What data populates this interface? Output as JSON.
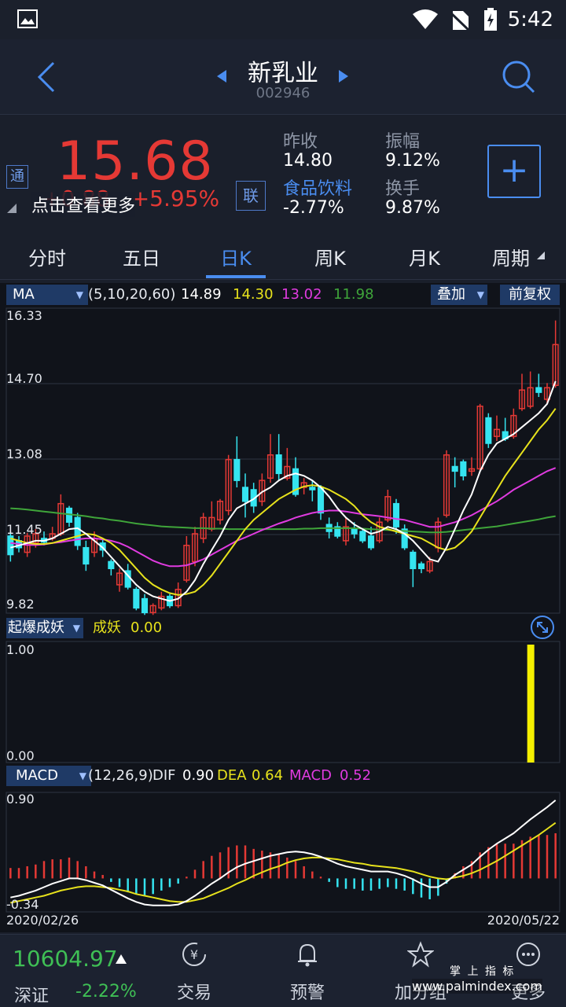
{
  "status": {
    "time": "5:42"
  },
  "header": {
    "name": "新乳业",
    "code": "002946"
  },
  "quote": {
    "price": "15.68",
    "change": "+0.88",
    "change_pct": "+5.95%",
    "tip": "点击查看更多",
    "tong_badge": "通",
    "lian_badge": "联",
    "prev_close_label": "昨收",
    "prev_close": "14.80",
    "amplitude_label": "振幅",
    "amplitude": "9.12%",
    "sector_label": "食品饮料",
    "sector_change": "-2.77%",
    "turnover_label": "换手",
    "turnover": "9.87%",
    "add_symbol": "+"
  },
  "tabs": [
    {
      "label": "分时",
      "active": false
    },
    {
      "label": "五日",
      "active": false
    },
    {
      "label": "日K",
      "active": true
    },
    {
      "label": "周K",
      "active": false
    },
    {
      "label": "月K",
      "active": false
    },
    {
      "label": "周期",
      "active": false
    }
  ],
  "ma_bar": {
    "name": "MA",
    "params": "(5,10,20,60)",
    "ma5": "14.89",
    "ma10": "14.30",
    "ma20": "13.02",
    "ma60": "11.98",
    "overlay": "叠加",
    "fq": "前复权"
  },
  "colors": {
    "ma5": "#ffffff",
    "ma10": "#e7e21c",
    "ma20": "#e03be0",
    "ma60": "#3fa53a",
    "up": "#e53935",
    "down": "#35e4f0",
    "accent": "#4a8df0"
  },
  "price_axis": [
    "16.33",
    "14.70",
    "13.08",
    "11.45",
    "9.82"
  ],
  "yao_bar": {
    "name": "起爆成妖",
    "label": "成妖",
    "value": "0.00",
    "axis_top": "1.00",
    "axis_bottom": "0.00"
  },
  "macd_bar": {
    "name": "MACD",
    "params": "(12,26,9)",
    "dif_label": "DIF",
    "dif": "0.90",
    "dea_label": "DEA",
    "dea": "0.64",
    "macd_label": "MACD",
    "macd": "0.52",
    "axis_top": "0.90",
    "axis_bottom": "-0.34"
  },
  "dates": {
    "start": "2020/02/26",
    "end": "2020/05/22"
  },
  "bottom": {
    "index_value": "10604.97",
    "index_name": "深证",
    "index_change": "-2.22%",
    "nav": [
      {
        "label": "交易",
        "icon": "yuan-exchange-icon"
      },
      {
        "label": "预警",
        "icon": "bell-icon"
      },
      {
        "label": "加分组",
        "icon": "star-icon"
      },
      {
        "label": "更多",
        "icon": "more-icon"
      }
    ],
    "watermark_cn": "掌 上 指 标",
    "watermark_url": "www.palmindex.com"
  },
  "chart_data": {
    "type": "candlestick",
    "price_range": [
      9.82,
      16.33
    ],
    "candles": [
      {
        "o": 11.55,
        "c": 11.15,
        "h": 11.65,
        "l": 11.0
      },
      {
        "o": 11.45,
        "c": 11.3,
        "h": 11.55,
        "l": 11.2
      },
      {
        "o": 11.2,
        "c": 11.55,
        "h": 11.62,
        "l": 11.1
      },
      {
        "o": 11.4,
        "c": 11.6,
        "h": 11.7,
        "l": 11.3
      },
      {
        "o": 11.5,
        "c": 11.42,
        "h": 11.65,
        "l": 11.35
      },
      {
        "o": 11.5,
        "c": 11.6,
        "h": 11.75,
        "l": 11.45
      },
      {
        "o": 11.6,
        "c": 12.25,
        "h": 12.45,
        "l": 11.55
      },
      {
        "o": 12.15,
        "c": 11.85,
        "h": 12.2,
        "l": 11.75
      },
      {
        "o": 11.95,
        "c": 11.35,
        "h": 12.05,
        "l": 11.25
      },
      {
        "o": 11.3,
        "c": 10.95,
        "h": 11.45,
        "l": 10.8
      },
      {
        "o": 11.2,
        "c": 11.5,
        "h": 11.65,
        "l": 11.1
      },
      {
        "o": 11.4,
        "c": 11.25,
        "h": 11.5,
        "l": 11.1
      },
      {
        "o": 11.0,
        "c": 10.85,
        "h": 11.05,
        "l": 10.7
      },
      {
        "o": 10.5,
        "c": 10.75,
        "h": 10.85,
        "l": 10.35
      },
      {
        "o": 10.8,
        "c": 10.45,
        "h": 10.95,
        "l": 10.4
      },
      {
        "o": 10.4,
        "c": 10.0,
        "h": 10.45,
        "l": 9.95
      },
      {
        "o": 10.2,
        "c": 9.9,
        "h": 10.3,
        "l": 9.85
      },
      {
        "o": 9.9,
        "c": 10.05,
        "h": 10.1,
        "l": 9.85
      },
      {
        "o": 10.0,
        "c": 10.25,
        "h": 10.35,
        "l": 9.95
      },
      {
        "o": 10.25,
        "c": 10.05,
        "h": 10.3,
        "l": 10.0
      },
      {
        "o": 10.05,
        "c": 10.4,
        "h": 10.55,
        "l": 10.0
      },
      {
        "o": 10.6,
        "c": 11.35,
        "h": 11.55,
        "l": 10.55
      },
      {
        "o": 11.0,
        "c": 11.6,
        "h": 11.75,
        "l": 10.9
      },
      {
        "o": 11.5,
        "c": 11.95,
        "h": 12.05,
        "l": 11.4
      },
      {
        "o": 11.7,
        "c": 11.95,
        "h": 12.3,
        "l": 11.65
      },
      {
        "o": 11.9,
        "c": 12.3,
        "h": 12.35,
        "l": 11.8
      },
      {
        "o": 12.1,
        "c": 13.2,
        "h": 13.3,
        "l": 12.0
      },
      {
        "o": 13.2,
        "c": 12.75,
        "h": 13.7,
        "l": 12.6
      },
      {
        "o": 12.6,
        "c": 12.3,
        "h": 12.9,
        "l": 11.95
      },
      {
        "o": 12.55,
        "c": 12.2,
        "h": 12.7,
        "l": 12.05
      },
      {
        "o": 12.3,
        "c": 12.75,
        "h": 12.9,
        "l": 12.2
      },
      {
        "o": 12.8,
        "c": 13.3,
        "h": 13.75,
        "l": 12.7
      },
      {
        "o": 13.3,
        "c": 12.9,
        "h": 13.75,
        "l": 12.75
      },
      {
        "o": 12.8,
        "c": 13.05,
        "h": 13.45,
        "l": 12.75
      },
      {
        "o": 13.0,
        "c": 12.45,
        "h": 13.25,
        "l": 12.4
      },
      {
        "o": 12.6,
        "c": 12.7,
        "h": 12.8,
        "l": 12.45
      },
      {
        "o": 12.6,
        "c": 12.55,
        "h": 12.75,
        "l": 12.3
      },
      {
        "o": 12.6,
        "c": 12.05,
        "h": 12.65,
        "l": 11.9
      },
      {
        "o": 11.8,
        "c": 11.65,
        "h": 11.95,
        "l": 11.5
      },
      {
        "o": 11.75,
        "c": 11.55,
        "h": 11.85,
        "l": 11.5
      },
      {
        "o": 11.45,
        "c": 11.75,
        "h": 11.95,
        "l": 11.35
      },
      {
        "o": 11.7,
        "c": 11.6,
        "h": 11.85,
        "l": 11.5
      },
      {
        "o": 11.65,
        "c": 11.45,
        "h": 11.7,
        "l": 11.4
      },
      {
        "o": 11.55,
        "c": 11.3,
        "h": 11.75,
        "l": 11.25
      },
      {
        "o": 11.45,
        "c": 11.85,
        "h": 11.95,
        "l": 11.4
      },
      {
        "o": 11.9,
        "c": 12.4,
        "h": 12.55,
        "l": 11.85
      },
      {
        "o": 12.25,
        "c": 11.75,
        "h": 12.35,
        "l": 11.6
      },
      {
        "o": 11.7,
        "c": 11.3,
        "h": 11.8,
        "l": 11.25
      },
      {
        "o": 11.2,
        "c": 10.85,
        "h": 11.25,
        "l": 10.45
      },
      {
        "o": 10.95,
        "c": 10.85,
        "h": 11.0,
        "l": 10.75
      },
      {
        "o": 10.8,
        "c": 11.0,
        "h": 11.1,
        "l": 10.75
      },
      {
        "o": 11.3,
        "c": 11.85,
        "h": 11.95,
        "l": 11.2
      },
      {
        "o": 12.0,
        "c": 13.3,
        "h": 13.4,
        "l": 11.95
      },
      {
        "o": 13.05,
        "c": 12.95,
        "h": 13.25,
        "l": 12.6
      },
      {
        "o": 13.15,
        "c": 12.85,
        "h": 13.2,
        "l": 12.75
      },
      {
        "o": 12.95,
        "c": 13.0,
        "h": 13.25,
        "l": 12.85
      },
      {
        "o": 13.0,
        "c": 14.35,
        "h": 14.4,
        "l": 12.95
      },
      {
        "o": 14.1,
        "c": 13.55,
        "h": 14.2,
        "l": 13.45
      },
      {
        "o": 13.7,
        "c": 13.85,
        "h": 14.15,
        "l": 13.6
      },
      {
        "o": 13.8,
        "c": 13.65,
        "h": 14.1,
        "l": 13.6
      },
      {
        "o": 13.7,
        "c": 14.15,
        "h": 14.3,
        "l": 13.65
      },
      {
        "o": 14.3,
        "c": 14.7,
        "h": 15.05,
        "l": 14.25
      },
      {
        "o": 14.35,
        "c": 14.75,
        "h": 15.1,
        "l": 14.3
      },
      {
        "o": 14.75,
        "c": 14.65,
        "h": 15.05,
        "l": 14.55
      },
      {
        "o": 14.5,
        "c": 14.75,
        "h": 14.85,
        "l": 14.4
      },
      {
        "o": 14.8,
        "c": 15.68,
        "h": 16.2,
        "l": 14.75
      }
    ],
    "ma5": [
      11.3,
      11.35,
      11.4,
      11.45,
      11.45,
      11.5,
      11.6,
      11.7,
      11.72,
      11.6,
      11.45,
      11.3,
      11.1,
      10.9,
      10.7,
      10.5,
      10.35,
      10.25,
      10.2,
      10.15,
      10.2,
      10.35,
      10.6,
      10.95,
      11.25,
      11.55,
      11.9,
      12.15,
      12.25,
      12.35,
      12.5,
      12.6,
      12.75,
      12.85,
      12.9,
      12.85,
      12.75,
      12.6,
      12.4,
      12.15,
      11.95,
      11.8,
      11.7,
      11.6,
      11.65,
      11.75,
      11.7,
      11.6,
      11.45,
      11.25,
      11.05,
      11.0,
      11.3,
      11.7,
      12.1,
      12.45,
      12.95,
      13.3,
      13.55,
      13.65,
      13.75,
      13.9,
      14.05,
      14.2,
      14.4,
      14.89
    ],
    "ma10": [
      11.5,
      11.45,
      11.4,
      11.38,
      11.38,
      11.4,
      11.45,
      11.5,
      11.55,
      11.6,
      11.58,
      11.5,
      11.4,
      11.25,
      11.05,
      10.85,
      10.65,
      10.5,
      10.4,
      10.32,
      10.28,
      10.3,
      10.35,
      10.5,
      10.7,
      10.95,
      11.2,
      11.45,
      11.7,
      11.9,
      12.05,
      12.2,
      12.35,
      12.45,
      12.55,
      12.62,
      12.65,
      12.62,
      12.55,
      12.45,
      12.35,
      12.2,
      12.0,
      11.85,
      11.75,
      11.7,
      11.65,
      11.6,
      11.55,
      11.5,
      11.4,
      11.3,
      11.25,
      11.3,
      11.45,
      11.65,
      11.95,
      12.25,
      12.55,
      12.85,
      13.1,
      13.35,
      13.6,
      13.85,
      14.05,
      14.3
    ],
    "ma20": [
      11.4,
      11.38,
      11.36,
      11.36,
      11.37,
      11.4,
      11.42,
      11.45,
      11.48,
      11.5,
      11.5,
      11.48,
      11.45,
      11.4,
      11.32,
      11.22,
      11.12,
      11.02,
      10.95,
      10.9,
      10.9,
      10.92,
      10.98,
      11.05,
      11.15,
      11.25,
      11.35,
      11.45,
      11.52,
      11.6,
      11.68,
      11.75,
      11.82,
      11.88,
      11.95,
      12.0,
      12.05,
      12.08,
      12.1,
      12.1,
      12.08,
      12.05,
      12.02,
      12.0,
      11.98,
      11.95,
      11.92,
      11.9,
      11.85,
      11.8,
      11.75,
      11.75,
      11.8,
      11.85,
      11.92,
      12.0,
      12.1,
      12.2,
      12.3,
      12.42,
      12.55,
      12.65,
      12.75,
      12.85,
      12.95,
      13.02
    ],
    "ma60": [
      12.15,
      12.14,
      12.12,
      12.1,
      12.08,
      12.06,
      12.04,
      12.02,
      12.0,
      11.98,
      11.95,
      11.93,
      11.9,
      11.88,
      11.85,
      11.82,
      11.8,
      11.78,
      11.76,
      11.75,
      11.74,
      11.73,
      11.72,
      11.72,
      11.71,
      11.71,
      11.7,
      11.7,
      11.7,
      11.7,
      11.7,
      11.7,
      11.7,
      11.7,
      11.7,
      11.71,
      11.71,
      11.72,
      11.72,
      11.72,
      11.72,
      11.72,
      11.71,
      11.7,
      11.69,
      11.68,
      11.67,
      11.66,
      11.65,
      11.64,
      11.63,
      11.63,
      11.64,
      11.66,
      11.68,
      11.7,
      11.72,
      11.74,
      11.76,
      11.79,
      11.82,
      11.85,
      11.88,
      11.91,
      11.95,
      11.98
    ],
    "yao_signal_index": 62,
    "macd_range": [
      -0.34,
      0.9
    ],
    "dif": [
      -0.22,
      -0.2,
      -0.17,
      -0.14,
      -0.1,
      -0.06,
      -0.03,
      0.0,
      0.0,
      -0.02,
      -0.05,
      -0.08,
      -0.13,
      -0.18,
      -0.23,
      -0.27,
      -0.3,
      -0.31,
      -0.31,
      -0.31,
      -0.3,
      -0.26,
      -0.2,
      -0.13,
      -0.06,
      0.0,
      0.07,
      0.13,
      0.17,
      0.2,
      0.23,
      0.26,
      0.28,
      0.3,
      0.31,
      0.3,
      0.28,
      0.25,
      0.21,
      0.17,
      0.14,
      0.12,
      0.1,
      0.08,
      0.08,
      0.08,
      0.06,
      0.03,
      -0.01,
      -0.06,
      -0.1,
      -0.1,
      -0.04,
      0.04,
      0.1,
      0.16,
      0.25,
      0.33,
      0.4,
      0.46,
      0.52,
      0.6,
      0.68,
      0.75,
      0.82,
      0.9
    ],
    "dea": [
      -0.28,
      -0.26,
      -0.24,
      -0.22,
      -0.2,
      -0.17,
      -0.14,
      -0.12,
      -0.1,
      -0.09,
      -0.09,
      -0.1,
      -0.11,
      -0.13,
      -0.15,
      -0.18,
      -0.2,
      -0.22,
      -0.24,
      -0.26,
      -0.27,
      -0.27,
      -0.25,
      -0.23,
      -0.19,
      -0.15,
      -0.11,
      -0.06,
      -0.02,
      0.03,
      0.07,
      0.11,
      0.14,
      0.18,
      0.21,
      0.23,
      0.24,
      0.24,
      0.23,
      0.22,
      0.2,
      0.18,
      0.17,
      0.15,
      0.14,
      0.13,
      0.12,
      0.1,
      0.08,
      0.05,
      0.02,
      0.0,
      -0.01,
      0.01,
      0.03,
      0.06,
      0.1,
      0.15,
      0.2,
      0.26,
      0.32,
      0.38,
      0.44,
      0.5,
      0.57,
      0.64
    ],
    "macd": [
      0.12,
      0.12,
      0.14,
      0.16,
      0.2,
      0.22,
      0.22,
      0.24,
      0.2,
      0.14,
      0.08,
      0.04,
      -0.04,
      -0.1,
      -0.16,
      -0.18,
      -0.2,
      -0.18,
      -0.14,
      -0.1,
      -0.06,
      0.02,
      0.1,
      0.2,
      0.26,
      0.3,
      0.36,
      0.38,
      0.38,
      0.34,
      0.32,
      0.3,
      0.28,
      0.24,
      0.2,
      0.14,
      0.08,
      0.02,
      -0.04,
      -0.1,
      -0.12,
      -0.12,
      -0.14,
      -0.14,
      -0.12,
      -0.1,
      -0.12,
      -0.14,
      -0.18,
      -0.22,
      -0.24,
      -0.2,
      -0.06,
      0.06,
      0.14,
      0.2,
      0.3,
      0.36,
      0.4,
      0.4,
      0.4,
      0.44,
      0.48,
      0.5,
      0.5,
      0.52
    ]
  }
}
